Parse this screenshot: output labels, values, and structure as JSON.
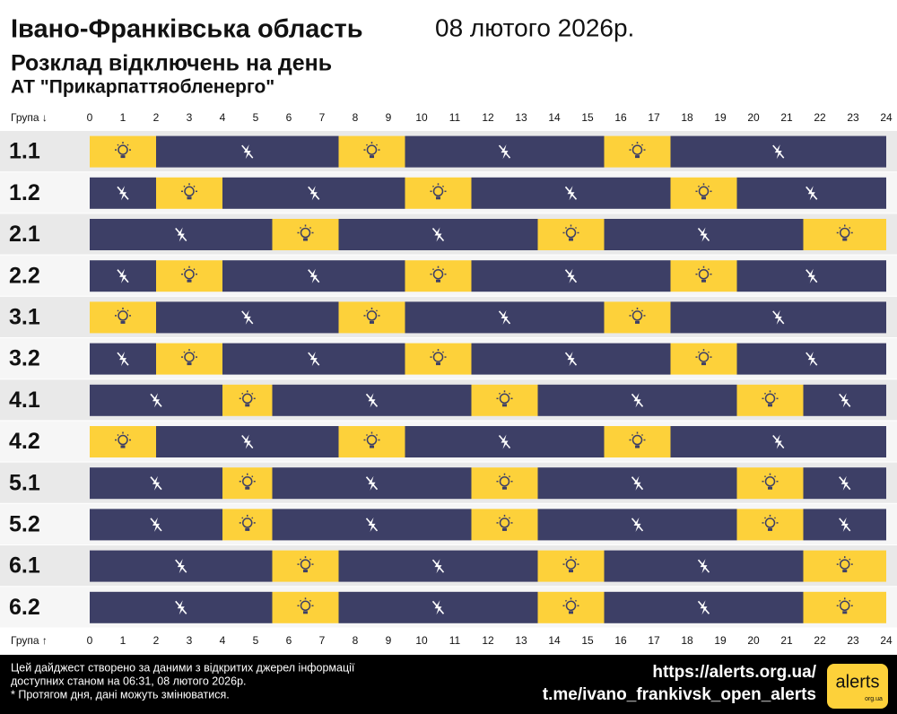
{
  "chart_data": {
    "type": "gantt",
    "title": "Івано-Франківська область",
    "date": "08 лютого 2026р.",
    "subtitle": "Розклад відключень на день",
    "company": "АТ \"Прикарпаттяобленерго\"",
    "axis_label_top": "Група ↓",
    "axis_label_bottom": "Група ↑",
    "xlim": [
      0,
      24
    ],
    "xticks": [
      0,
      1,
      2,
      3,
      4,
      5,
      6,
      7,
      8,
      9,
      10,
      11,
      12,
      13,
      14,
      15,
      16,
      17,
      18,
      19,
      20,
      21,
      22,
      23,
      24
    ],
    "on_color": "#fdd13a",
    "off_color": "#3d3f66",
    "rows": [
      {
        "name": "1.1",
        "segments": [
          {
            "start": 0,
            "end": 2,
            "on": true
          },
          {
            "start": 2,
            "end": 7.5,
            "on": false
          },
          {
            "start": 7.5,
            "end": 9.5,
            "on": true
          },
          {
            "start": 9.5,
            "end": 15.5,
            "on": false
          },
          {
            "start": 15.5,
            "end": 17.5,
            "on": true
          },
          {
            "start": 17.5,
            "end": 24,
            "on": false
          }
        ]
      },
      {
        "name": "1.2",
        "segments": [
          {
            "start": 0,
            "end": 2,
            "on": false
          },
          {
            "start": 2,
            "end": 4,
            "on": true
          },
          {
            "start": 4,
            "end": 9.5,
            "on": false
          },
          {
            "start": 9.5,
            "end": 11.5,
            "on": true
          },
          {
            "start": 11.5,
            "end": 17.5,
            "on": false
          },
          {
            "start": 17.5,
            "end": 19.5,
            "on": true
          },
          {
            "start": 19.5,
            "end": 24,
            "on": false
          }
        ]
      },
      {
        "name": "2.1",
        "segments": [
          {
            "start": 0,
            "end": 5.5,
            "on": false
          },
          {
            "start": 5.5,
            "end": 7.5,
            "on": true
          },
          {
            "start": 7.5,
            "end": 13.5,
            "on": false
          },
          {
            "start": 13.5,
            "end": 15.5,
            "on": true
          },
          {
            "start": 15.5,
            "end": 21.5,
            "on": false
          },
          {
            "start": 21.5,
            "end": 24,
            "on": true
          }
        ]
      },
      {
        "name": "2.2",
        "segments": [
          {
            "start": 0,
            "end": 2,
            "on": false
          },
          {
            "start": 2,
            "end": 4,
            "on": true
          },
          {
            "start": 4,
            "end": 9.5,
            "on": false
          },
          {
            "start": 9.5,
            "end": 11.5,
            "on": true
          },
          {
            "start": 11.5,
            "end": 17.5,
            "on": false
          },
          {
            "start": 17.5,
            "end": 19.5,
            "on": true
          },
          {
            "start": 19.5,
            "end": 24,
            "on": false
          }
        ]
      },
      {
        "name": "3.1",
        "segments": [
          {
            "start": 0,
            "end": 2,
            "on": true
          },
          {
            "start": 2,
            "end": 7.5,
            "on": false
          },
          {
            "start": 7.5,
            "end": 9.5,
            "on": true
          },
          {
            "start": 9.5,
            "end": 15.5,
            "on": false
          },
          {
            "start": 15.5,
            "end": 17.5,
            "on": true
          },
          {
            "start": 17.5,
            "end": 24,
            "on": false
          }
        ]
      },
      {
        "name": "3.2",
        "segments": [
          {
            "start": 0,
            "end": 2,
            "on": false
          },
          {
            "start": 2,
            "end": 4,
            "on": true
          },
          {
            "start": 4,
            "end": 9.5,
            "on": false
          },
          {
            "start": 9.5,
            "end": 11.5,
            "on": true
          },
          {
            "start": 11.5,
            "end": 17.5,
            "on": false
          },
          {
            "start": 17.5,
            "end": 19.5,
            "on": true
          },
          {
            "start": 19.5,
            "end": 24,
            "on": false
          }
        ]
      },
      {
        "name": "4.1",
        "segments": [
          {
            "start": 0,
            "end": 4,
            "on": false
          },
          {
            "start": 4,
            "end": 5.5,
            "on": true
          },
          {
            "start": 5.5,
            "end": 11.5,
            "on": false
          },
          {
            "start": 11.5,
            "end": 13.5,
            "on": true
          },
          {
            "start": 13.5,
            "end": 19.5,
            "on": false
          },
          {
            "start": 19.5,
            "end": 21.5,
            "on": true
          },
          {
            "start": 21.5,
            "end": 24,
            "on": false
          }
        ]
      },
      {
        "name": "4.2",
        "segments": [
          {
            "start": 0,
            "end": 2,
            "on": true
          },
          {
            "start": 2,
            "end": 7.5,
            "on": false
          },
          {
            "start": 7.5,
            "end": 9.5,
            "on": true
          },
          {
            "start": 9.5,
            "end": 15.5,
            "on": false
          },
          {
            "start": 15.5,
            "end": 17.5,
            "on": true
          },
          {
            "start": 17.5,
            "end": 24,
            "on": false
          }
        ]
      },
      {
        "name": "5.1",
        "segments": [
          {
            "start": 0,
            "end": 4,
            "on": false
          },
          {
            "start": 4,
            "end": 5.5,
            "on": true
          },
          {
            "start": 5.5,
            "end": 11.5,
            "on": false
          },
          {
            "start": 11.5,
            "end": 13.5,
            "on": true
          },
          {
            "start": 13.5,
            "end": 19.5,
            "on": false
          },
          {
            "start": 19.5,
            "end": 21.5,
            "on": true
          },
          {
            "start": 21.5,
            "end": 24,
            "on": false
          }
        ]
      },
      {
        "name": "5.2",
        "segments": [
          {
            "start": 0,
            "end": 4,
            "on": false
          },
          {
            "start": 4,
            "end": 5.5,
            "on": true
          },
          {
            "start": 5.5,
            "end": 11.5,
            "on": false
          },
          {
            "start": 11.5,
            "end": 13.5,
            "on": true
          },
          {
            "start": 13.5,
            "end": 19.5,
            "on": false
          },
          {
            "start": 19.5,
            "end": 21.5,
            "on": true
          },
          {
            "start": 21.5,
            "end": 24,
            "on": false
          }
        ]
      },
      {
        "name": "6.1",
        "segments": [
          {
            "start": 0,
            "end": 5.5,
            "on": false
          },
          {
            "start": 5.5,
            "end": 7.5,
            "on": true
          },
          {
            "start": 7.5,
            "end": 13.5,
            "on": false
          },
          {
            "start": 13.5,
            "end": 15.5,
            "on": true
          },
          {
            "start": 15.5,
            "end": 21.5,
            "on": false
          },
          {
            "start": 21.5,
            "end": 24,
            "on": true
          }
        ]
      },
      {
        "name": "6.2",
        "segments": [
          {
            "start": 0,
            "end": 5.5,
            "on": false
          },
          {
            "start": 5.5,
            "end": 7.5,
            "on": true
          },
          {
            "start": 7.5,
            "end": 13.5,
            "on": false
          },
          {
            "start": 13.5,
            "end": 15.5,
            "on": true
          },
          {
            "start": 15.5,
            "end": 21.5,
            "on": false
          },
          {
            "start": 21.5,
            "end": 24,
            "on": true
          }
        ]
      }
    ],
    "footer_lines": [
      "Цей дайджест створено за даними з відкритих джерел інформації",
      "доступних станом на 06:31, 08 лютого 2026р.",
      "* Протягом дня, дані можуть змінюватися."
    ],
    "links": [
      "https://alerts.org.ua/",
      "t.me/ivano_frankivsk_open_alerts"
    ],
    "logo": "alerts",
    "logo_domain": "org.ua"
  }
}
